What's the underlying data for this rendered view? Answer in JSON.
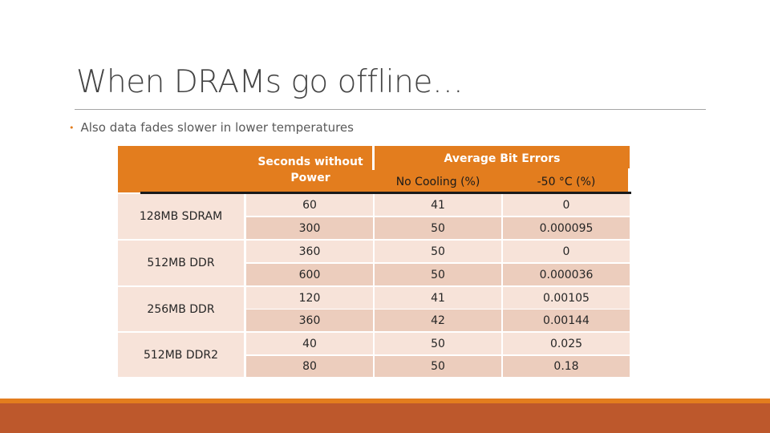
{
  "slide": {
    "title": "When DRAMs go offline…",
    "bullet": "Also data fades slower in lower temperatures"
  },
  "table": {
    "header": {
      "col_seconds": "Seconds without Power",
      "group_label": "Average Bit Errors",
      "col_no_cooling": "No Cooling (%)",
      "col_cooled": "-50 °C (%)"
    },
    "groups": [
      {
        "label": "128MB SDRAM",
        "rows": [
          {
            "seconds": "60",
            "no_cooling": "41",
            "cooled": "0"
          },
          {
            "seconds": "300",
            "no_cooling": "50",
            "cooled": "0.000095"
          }
        ]
      },
      {
        "label": "512MB DDR",
        "rows": [
          {
            "seconds": "360",
            "no_cooling": "50",
            "cooled": "0"
          },
          {
            "seconds": "600",
            "no_cooling": "50",
            "cooled": "0.000036"
          }
        ]
      },
      {
        "label": "256MB DDR",
        "rows": [
          {
            "seconds": "120",
            "no_cooling": "41",
            "cooled": "0.00105"
          },
          {
            "seconds": "360",
            "no_cooling": "42",
            "cooled": "0.00144"
          }
        ]
      },
      {
        "label": "512MB DDR2",
        "rows": [
          {
            "seconds": "40",
            "no_cooling": "50",
            "cooled": "0.025"
          },
          {
            "seconds": "80",
            "no_cooling": "50",
            "cooled": "0.18"
          }
        ]
      }
    ]
  },
  "colors": {
    "accent": "#e37d1e",
    "footer": "#bd582c",
    "row_light": "#f7e3d9",
    "row_dark": "#eccdbd"
  }
}
